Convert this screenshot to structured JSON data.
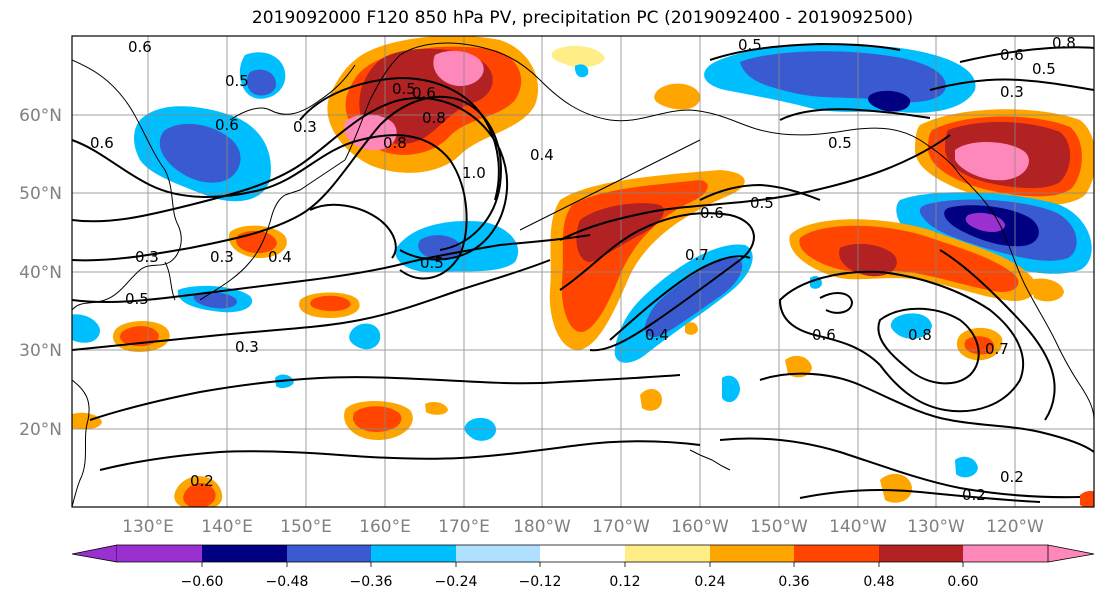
{
  "title": "2019092000 F120 850 hPa PV, precipitation PC (2019092400 - 2019092500)",
  "map": {
    "lon_labels": [
      "130°E",
      "140°E",
      "150°E",
      "160°E",
      "170°E",
      "180°W",
      "170°W",
      "160°W",
      "150°W",
      "140°W",
      "130°W",
      "120°W"
    ],
    "lat_labels": [
      "60°N",
      "50°N",
      "40°N",
      "30°N",
      "20°N"
    ],
    "contour_labels": [
      "0.6",
      "0.5",
      "0.6",
      "0.6",
      "0.3",
      "0.8",
      "0.5",
      "0.6",
      "0.8",
      "1.0",
      "0.4",
      "0.5",
      "0.5",
      "0.3",
      "0.3",
      "0.4",
      "0.5",
      "0.5",
      "0.3",
      "0.6",
      "0.7",
      "0.5",
      "0.4",
      "0.6",
      "0.8",
      "0.7",
      "0.2",
      "0.2",
      "0.2",
      "0.5",
      "0.6",
      "0.8",
      "0.3"
    ]
  },
  "colorbar": {
    "colors": [
      "#9b30d0",
      "#000080",
      "#3a5bd0",
      "#00bfff",
      "#b0e0ff",
      "#ffffff",
      "#ffee88",
      "#ffa500",
      "#ff4500",
      "#b22222",
      "#ff88bb"
    ],
    "tick_labels": [
      "−0.60",
      "−0.48",
      "−0.36",
      "−0.24",
      "−0.12",
      "0.12",
      "0.24",
      "0.36",
      "0.48",
      "0.60"
    ]
  },
  "legend_colors": {
    "purple": "#9b30d0",
    "navy": "#000080",
    "blue": "#3a5bd0",
    "sky": "#00bfff",
    "pale_blue": "#b0e0ff",
    "white": "#ffffff",
    "pale_yellow": "#ffee88",
    "orange": "#ffa500",
    "red_orange": "#ff4500",
    "dark_red": "#b22222",
    "pink": "#ff88bb"
  }
}
